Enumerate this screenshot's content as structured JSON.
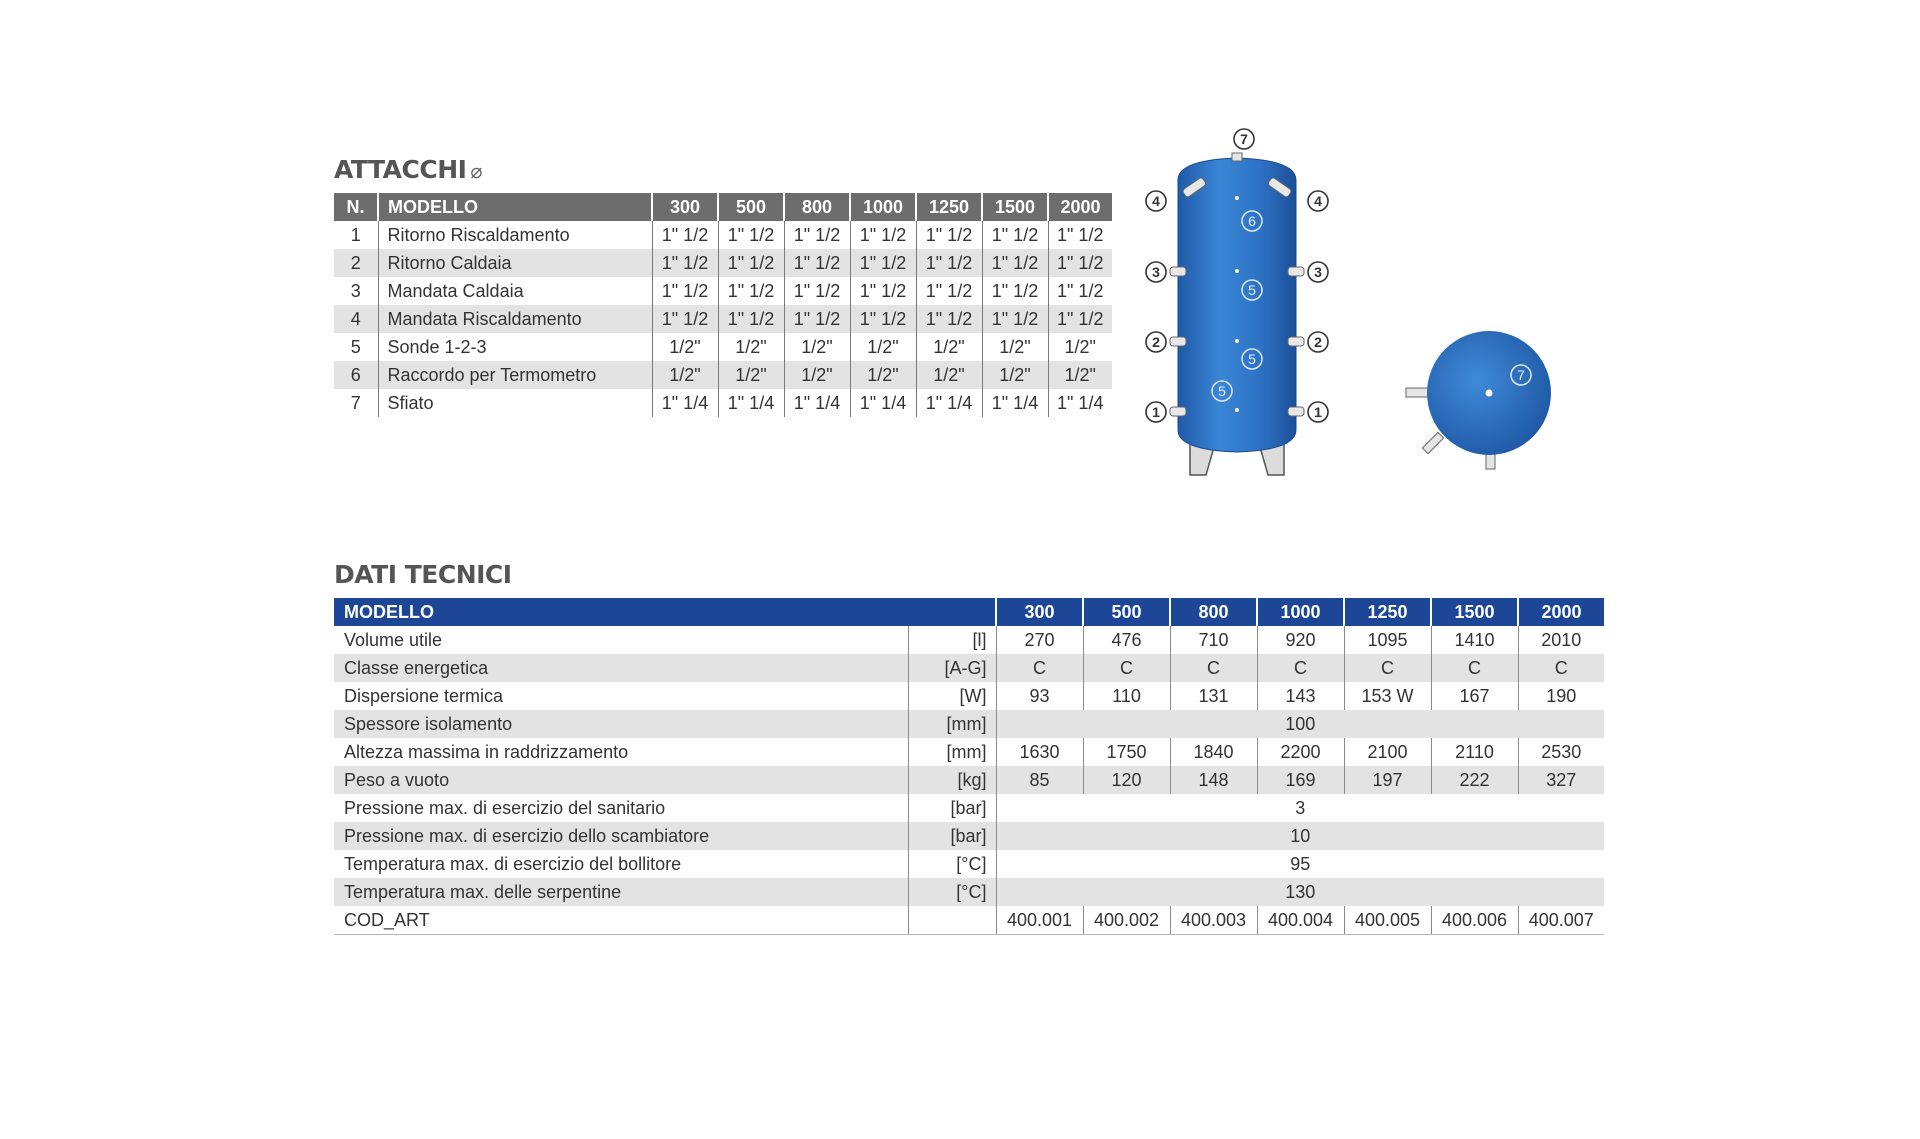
{
  "attacchi": {
    "title": "ATTACCHI",
    "symbol": "⌀",
    "headers": [
      "N.",
      "MODELLO",
      "300",
      "500",
      "800",
      "1000",
      "1250",
      "1500",
      "2000"
    ],
    "rows": [
      {
        "n": "1",
        "label": "Ritorno Riscaldamento",
        "values": [
          "1\" 1/2",
          "1\" 1/2",
          "1\" 1/2",
          "1\" 1/2",
          "1\" 1/2",
          "1\" 1/2",
          "1\" 1/2"
        ]
      },
      {
        "n": "2",
        "label": "Ritorno Caldaia",
        "values": [
          "1\" 1/2",
          "1\" 1/2",
          "1\" 1/2",
          "1\" 1/2",
          "1\" 1/2",
          "1\" 1/2",
          "1\" 1/2"
        ]
      },
      {
        "n": "3",
        "label": "Mandata Caldaia",
        "values": [
          "1\" 1/2",
          "1\" 1/2",
          "1\" 1/2",
          "1\" 1/2",
          "1\" 1/2",
          "1\" 1/2",
          "1\" 1/2"
        ]
      },
      {
        "n": "4",
        "label": "Mandata Riscaldamento",
        "values": [
          "1\" 1/2",
          "1\" 1/2",
          "1\" 1/2",
          "1\" 1/2",
          "1\" 1/2",
          "1\" 1/2",
          "1\" 1/2"
        ]
      },
      {
        "n": "5",
        "label": "Sonde 1-2-3",
        "values": [
          "1/2\"",
          "1/2\"",
          "1/2\"",
          "1/2\"",
          "1/2\"",
          "1/2\"",
          "1/2\""
        ]
      },
      {
        "n": "6",
        "label": "Raccordo per Termometro",
        "values": [
          "1/2\"",
          "1/2\"",
          "1/2\"",
          "1/2\"",
          "1/2\"",
          "1/2\"",
          "1/2\""
        ]
      },
      {
        "n": "7",
        "label": "Sfiato",
        "values": [
          "1\" 1/4",
          "1\" 1/4",
          "1\" 1/4",
          "1\" 1/4",
          "1\" 1/4",
          "1\" 1/4",
          "1\" 1/4"
        ]
      }
    ]
  },
  "dati_tecnici": {
    "title": "DATI TECNICI",
    "headers": [
      "MODELLO",
      "300",
      "500",
      "800",
      "1000",
      "1250",
      "1500",
      "2000"
    ],
    "rows": [
      {
        "label": "Volume utile",
        "unit": "[l]",
        "values": [
          "270",
          "476",
          "710",
          "920",
          "1095",
          "1410",
          "2010"
        ]
      },
      {
        "label": "Classe energetica",
        "unit": "[A-G]",
        "values": [
          "C",
          "C",
          "C",
          "C",
          "C",
          "C",
          "C"
        ]
      },
      {
        "label": "Dispersione termica",
        "unit": "[W]",
        "values": [
          "93",
          "110",
          "131",
          "143",
          "153 W",
          "167",
          "190"
        ]
      },
      {
        "label": "Spessore isolamento",
        "unit": "[mm]",
        "span": "100"
      },
      {
        "label": "Altezza massima in raddrizzamento",
        "unit": "[mm]",
        "values": [
          "1630",
          "1750",
          "1840",
          "2200",
          "2100",
          "2110",
          "2530"
        ]
      },
      {
        "label": "Peso a vuoto",
        "unit": "[kg]",
        "values": [
          "85",
          "120",
          "148",
          "169",
          "197",
          "222",
          "327"
        ]
      },
      {
        "label": "Pressione max. di esercizio del sanitario",
        "unit": "[bar]",
        "span": "3"
      },
      {
        "label": "Pressione max. di esercizio dello scambiatore",
        "unit": "[bar]",
        "span": "10"
      },
      {
        "label": "Temperatura max. di esercizio del bollitore",
        "unit": "[°C]",
        "span": "95"
      },
      {
        "label": "Temperatura max. delle serpentine",
        "unit": "[°C]",
        "span": "130"
      },
      {
        "label": "COD_ART",
        "unit": "",
        "values": [
          "400.001",
          "400.002",
          "400.003",
          "400.004",
          "400.005",
          "400.006",
          "400.007"
        ]
      }
    ]
  },
  "diagram": {
    "front_labels": [
      "1",
      "2",
      "3",
      "4",
      "5",
      "6",
      "7"
    ],
    "top_view_label": "7",
    "colors": {
      "tank": "#2f72c2",
      "tank_dark": "#1d4f9a",
      "fitting": "#e8e8e8",
      "outline": "#444444"
    }
  }
}
